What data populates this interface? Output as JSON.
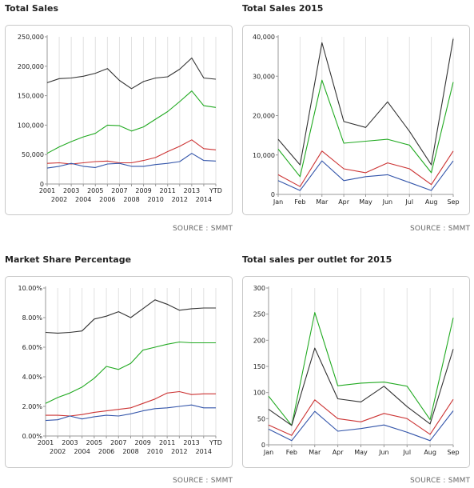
{
  "source_label": "SOURCE : SMMT",
  "series_colors": [
    "#333333",
    "#22aa22",
    "#cc3333",
    "#3355aa"
  ],
  "charts": [
    {
      "title": "Total Sales",
      "chart_data": {
        "type": "line",
        "categories": [
          "2001",
          "2002",
          "2003",
          "2004",
          "2005",
          "2006",
          "2007",
          "2008",
          "2009",
          "2010",
          "2011",
          "2012",
          "2013",
          "2014",
          "YTD"
        ],
        "x_ticks_row1": [
          "2001",
          "2003",
          "2005",
          "2007",
          "2009",
          "2011",
          "2013",
          "YTD"
        ],
        "x_ticks_row2": [
          "2002",
          "2004",
          "2006",
          "2008",
          "2010",
          "2012",
          "2014"
        ],
        "yticks": [
          "0",
          "50,000",
          "100,000",
          "150,000",
          "200,000",
          "250,000"
        ],
        "ylim": [
          0,
          250000
        ],
        "grid": "vertical",
        "series": [
          {
            "color": "#333333",
            "values": [
              172000,
              179000,
              180000,
              183000,
              188000,
              196000,
              176000,
              162000,
              174000,
              180000,
              182000,
              195000,
              214000,
              180000,
              178000
            ]
          },
          {
            "color": "#22aa22",
            "values": [
              52000,
              63000,
              72000,
              80000,
              86000,
              100000,
              99000,
              90000,
              97000,
              110000,
              123000,
              140000,
              158000,
              133000,
              130000
            ]
          },
          {
            "color": "#cc3333",
            "values": [
              35000,
              36000,
              34000,
              36000,
              38000,
              39000,
              36000,
              36000,
              40000,
              45000,
              55000,
              64000,
              75000,
              60000,
              58000
            ]
          },
          {
            "color": "#3355aa",
            "values": [
              27000,
              30000,
              35000,
              30000,
              28000,
              34000,
              35000,
              30000,
              30000,
              33000,
              35000,
              38000,
              52000,
              40000,
              39000
            ]
          }
        ]
      }
    },
    {
      "title": "Total Sales 2015",
      "chart_data": {
        "type": "line",
        "categories": [
          "Jan",
          "Feb",
          "Mar",
          "Apr",
          "May",
          "Jun",
          "Jul",
          "Aug",
          "Sep"
        ],
        "yticks": [
          "0",
          "10,000",
          "20,000",
          "30,000",
          "40,000"
        ],
        "ylim": [
          0,
          40000
        ],
        "grid": "vertical",
        "series": [
          {
            "color": "#333333",
            "values": [
              14000,
              7500,
              38500,
              18500,
              17000,
              23500,
              16000,
              7500,
              39500
            ]
          },
          {
            "color": "#22aa22",
            "values": [
              11500,
              4500,
              29000,
              13000,
              13500,
              14000,
              12500,
              5500,
              28500
            ]
          },
          {
            "color": "#cc3333",
            "values": [
              5000,
              2000,
              11000,
              6500,
              5500,
              8000,
              6500,
              2500,
              11000
            ]
          },
          {
            "color": "#3355aa",
            "values": [
              3500,
              1000,
              8500,
              3500,
              4500,
              5000,
              3000,
              1000,
              8500
            ]
          }
        ]
      }
    },
    {
      "title": "Market Share Percentage",
      "chart_data": {
        "type": "line",
        "categories": [
          "2001",
          "2002",
          "2003",
          "2004",
          "2005",
          "2006",
          "2007",
          "2008",
          "2009",
          "2010",
          "2011",
          "2012",
          "2013",
          "2014",
          "YTD"
        ],
        "x_ticks_row1": [
          "2001",
          "2003",
          "2005",
          "2007",
          "2009",
          "2011",
          "2013",
          "YTD"
        ],
        "x_ticks_row2": [
          "2002",
          "2004",
          "2006",
          "2008",
          "2010",
          "2012",
          "2014"
        ],
        "yticks": [
          "0.00%",
          "2.00%",
          "4.00%",
          "6.00%",
          "8.00%",
          "10.00%"
        ],
        "ylim": [
          0,
          10
        ],
        "grid": "vertical",
        "series": [
          {
            "color": "#333333",
            "values": [
              7.0,
              6.95,
              7.0,
              7.1,
              7.9,
              8.1,
              8.4,
              8.0,
              8.6,
              9.2,
              8.9,
              8.5,
              8.6,
              8.65,
              8.65
            ]
          },
          {
            "color": "#22aa22",
            "values": [
              2.2,
              2.6,
              2.9,
              3.3,
              3.9,
              4.7,
              4.5,
              4.9,
              5.8,
              6.0,
              6.2,
              6.35,
              6.3,
              6.3,
              6.3
            ]
          },
          {
            "color": "#cc3333",
            "values": [
              1.4,
              1.4,
              1.35,
              1.45,
              1.6,
              1.7,
              1.8,
              1.9,
              2.2,
              2.5,
              2.9,
              3.0,
              2.8,
              2.85,
              2.85
            ]
          },
          {
            "color": "#3355aa",
            "values": [
              1.05,
              1.1,
              1.35,
              1.15,
              1.3,
              1.4,
              1.35,
              1.5,
              1.7,
              1.85,
              1.9,
              2.0,
              2.1,
              1.9,
              1.9
            ]
          }
        ]
      }
    },
    {
      "title": "Total sales per outlet for 2015",
      "chart_data": {
        "type": "line",
        "categories": [
          "Jan",
          "Feb",
          "Mar",
          "Apr",
          "May",
          "Jun",
          "Jul",
          "Aug",
          "Sep"
        ],
        "yticks": [
          "0",
          "50",
          "100",
          "150",
          "200",
          "250",
          "300"
        ],
        "ylim": [
          0,
          300
        ],
        "grid": "vertical",
        "series": [
          {
            "color": "#22aa22",
            "values": [
              93,
              37,
              253,
              113,
              118,
              120,
              112,
              48,
              243
            ]
          },
          {
            "color": "#333333",
            "values": [
              68,
              37,
              185,
              88,
              82,
              112,
              73,
              40,
              183
            ]
          },
          {
            "color": "#cc3333",
            "values": [
              38,
              18,
              86,
              50,
              44,
              60,
              50,
              20,
              87
            ]
          },
          {
            "color": "#3355aa",
            "values": [
              30,
              8,
              64,
              26,
              31,
              38,
              24,
              8,
              65
            ]
          }
        ]
      }
    }
  ]
}
